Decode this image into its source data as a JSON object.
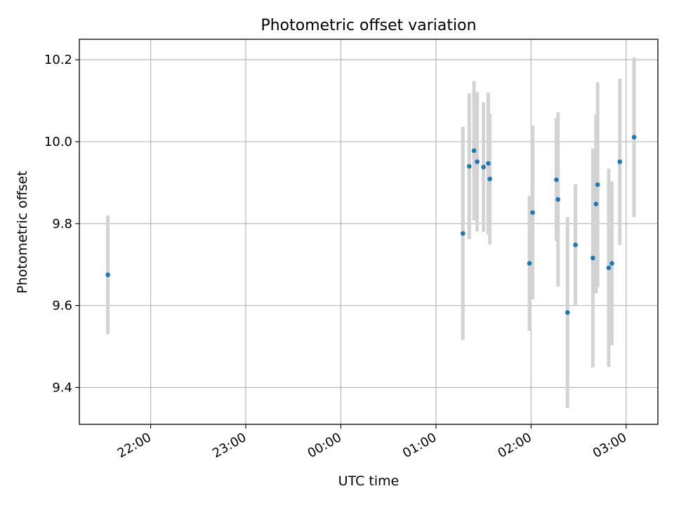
{
  "chart_data": {
    "type": "scatter",
    "title": "Photometric offset variation",
    "xlabel": "UTC time",
    "ylabel": "Photometric offset",
    "x_unit": "UTC time",
    "xlim": [
      "21:15",
      "03:20"
    ],
    "ylim": [
      9.31,
      10.25
    ],
    "xticks": [
      "22:00",
      "23:00",
      "00:00",
      "01:00",
      "02:00",
      "03:00"
    ],
    "yticks": [
      "9.4",
      "9.6",
      "9.8",
      "10.0",
      "10.2"
    ],
    "grid": true,
    "series": [
      {
        "marker_color": "#1f77b4",
        "errorbar_color": "#d3d3d3",
        "points": [
          {
            "t": "21:33",
            "y": 9.675,
            "err": 0.145
          },
          {
            "t": "01:17",
            "y": 9.776,
            "err": 0.26
          },
          {
            "t": "01:21",
            "y": 9.94,
            "err": 0.178
          },
          {
            "t": "01:24",
            "y": 9.978,
            "err": 0.17
          },
          {
            "t": "01:26",
            "y": 9.951,
            "err": 0.17
          },
          {
            "t": "01:30",
            "y": 9.938,
            "err": 0.158
          },
          {
            "t": "01:33",
            "y": 9.947,
            "err": 0.173
          },
          {
            "t": "01:34",
            "y": 9.909,
            "err": 0.16
          },
          {
            "t": "01:59",
            "y": 9.703,
            "err": 0.165
          },
          {
            "t": "02:01",
            "y": 9.827,
            "err": 0.212
          },
          {
            "t": "02:16",
            "y": 9.907,
            "err": 0.15
          },
          {
            "t": "02:17",
            "y": 9.859,
            "err": 0.213
          },
          {
            "t": "02:23",
            "y": 9.583,
            "err": 0.233
          },
          {
            "t": "02:28",
            "y": 9.748,
            "err": 0.148
          },
          {
            "t": "02:39",
            "y": 9.716,
            "err": 0.267
          },
          {
            "t": "02:41",
            "y": 9.848,
            "err": 0.218
          },
          {
            "t": "02:42",
            "y": 9.895,
            "err": 0.25
          },
          {
            "t": "02:49",
            "y": 9.692,
            "err": 0.242
          },
          {
            "t": "02:51",
            "y": 9.703,
            "err": 0.2
          },
          {
            "t": "02:56",
            "y": 9.951,
            "err": 0.203
          },
          {
            "t": "03:05",
            "y": 10.011,
            "err": 0.195
          }
        ]
      }
    ]
  }
}
